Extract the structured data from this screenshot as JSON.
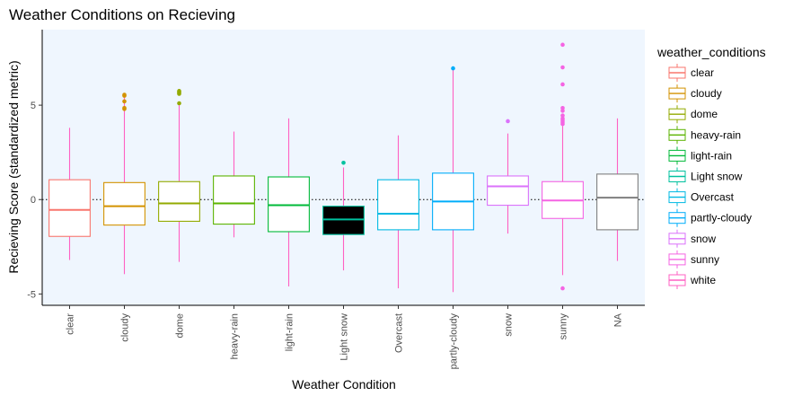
{
  "chart_data": {
    "type": "box",
    "title": "Weather Conditions on Recieving",
    "xlabel": "Weather Condition",
    "ylabel": "Recieving Score (standardized metric)",
    "ylim": [
      -5.6,
      9
    ],
    "yticks": [
      -5,
      0,
      5
    ],
    "reference_line": 0,
    "grid": false,
    "panel_background": "#eff6fe",
    "legend": {
      "title": "weather_conditions",
      "position": "right",
      "entries": [
        {
          "label": "clear",
          "color": "#f8766d"
        },
        {
          "label": "cloudy",
          "color": "#d39200"
        },
        {
          "label": "dome",
          "color": "#93aa00"
        },
        {
          "label": "heavy-rain",
          "color": "#5bb300"
        },
        {
          "label": "light-rain",
          "color": "#00ba38"
        },
        {
          "label": "Light snow",
          "color": "#00c19f"
        },
        {
          "label": "Overcast",
          "color": "#00b9e3"
        },
        {
          "label": "partly-cloudy",
          "color": "#00adfa"
        },
        {
          "label": "snow",
          "color": "#db72fb"
        },
        {
          "label": "sunny",
          "color": "#f564e3"
        },
        {
          "label": "white",
          "color": "#ff61c3"
        }
      ]
    },
    "categories": [
      "clear",
      "cloudy",
      "dome",
      "heavy-rain",
      "light-rain",
      "Light snow",
      "Overcast",
      "partly-cloudy",
      "snow",
      "sunny",
      "NA"
    ],
    "boxes": [
      {
        "category": "clear",
        "box_color": "#f8766d",
        "whisker_color": "#ff61c3",
        "fill": "#ffffff",
        "q1": -1.95,
        "median": -0.55,
        "q3": 1.05,
        "whisker_low": -3.2,
        "whisker_high": 3.8,
        "outliers": []
      },
      {
        "category": "cloudy",
        "box_color": "#d39200",
        "whisker_color": "#ff61c3",
        "fill": "#ffffff",
        "q1": -1.35,
        "median": -0.35,
        "q3": 0.9,
        "whisker_low": -3.95,
        "whisker_high": 5.4,
        "outliers": [
          4.8,
          4.85,
          5.2,
          5.5,
          5.55
        ]
      },
      {
        "category": "dome",
        "box_color": "#93aa00",
        "whisker_color": "#ff61c3",
        "fill": "#ffffff",
        "q1": -1.15,
        "median": -0.2,
        "q3": 0.95,
        "whisker_low": -3.3,
        "whisker_high": 5.0,
        "outliers": [
          5.1,
          5.6,
          5.65,
          5.7,
          5.75
        ]
      },
      {
        "category": "heavy-rain",
        "box_color": "#5bb300",
        "whisker_color": "#ff61c3",
        "fill": "#ffffff",
        "q1": -1.3,
        "median": -0.2,
        "q3": 1.25,
        "whisker_low": -2.0,
        "whisker_high": 3.6,
        "outliers": []
      },
      {
        "category": "light-rain",
        "box_color": "#00ba38",
        "whisker_color": "#ff61c3",
        "fill": "#ffffff",
        "q1": -1.7,
        "median": -0.3,
        "q3": 1.2,
        "whisker_low": -4.6,
        "whisker_high": 4.3,
        "outliers": []
      },
      {
        "category": "Light snow",
        "box_color": "#00c19f",
        "whisker_color": "#ff61c3",
        "fill": "#000000",
        "q1": -1.85,
        "median": -1.05,
        "q3": -0.35,
        "whisker_low": -3.75,
        "whisker_high": 1.7,
        "outliers": [
          1.95
        ]
      },
      {
        "category": "Overcast",
        "box_color": "#00b9e3",
        "whisker_color": "#ff61c3",
        "fill": "#ffffff",
        "q1": -1.6,
        "median": -0.75,
        "q3": 1.05,
        "whisker_low": -4.7,
        "whisker_high": 3.4,
        "outliers": []
      },
      {
        "category": "partly-cloudy",
        "box_color": "#00adfa",
        "whisker_color": "#ff61c3",
        "fill": "#ffffff",
        "q1": -1.6,
        "median": -0.1,
        "q3": 1.4,
        "whisker_low": -4.9,
        "whisker_high": 6.95,
        "outliers": [
          6.95
        ]
      },
      {
        "category": "snow",
        "box_color": "#db72fb",
        "whisker_color": "#ff61c3",
        "fill": "#ffffff",
        "q1": -0.3,
        "median": 0.7,
        "q3": 1.25,
        "whisker_low": -1.8,
        "whisker_high": 3.5,
        "outliers": [
          4.15
        ]
      },
      {
        "category": "sunny",
        "box_color": "#f564e3",
        "whisker_color": "#ff61c3",
        "fill": "#ffffff",
        "q1": -1.0,
        "median": -0.05,
        "q3": 0.95,
        "whisker_low": -4.0,
        "whisker_high": 3.9,
        "outliers": [
          -4.7,
          4.0,
          4.1,
          4.2,
          4.3,
          4.45,
          4.7,
          4.85,
          6.1,
          7.0,
          8.2
        ]
      },
      {
        "category": "NA",
        "box_color": "#7f7f7f",
        "whisker_color": "#ff61c3",
        "fill": "#ffffff",
        "q1": -1.6,
        "median": 0.1,
        "q3": 1.35,
        "whisker_low": -3.25,
        "whisker_high": 4.3,
        "outliers": []
      }
    ]
  }
}
